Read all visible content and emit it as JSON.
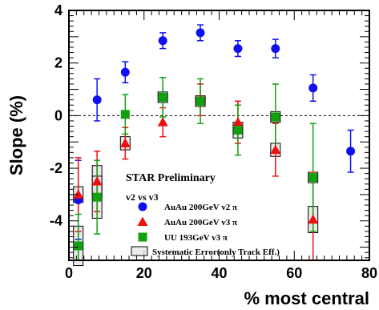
{
  "chart_data": {
    "type": "scatter",
    "xlabel": "% most central",
    "ylabel": "Slope (%)",
    "xlim": [
      0,
      80
    ],
    "ylim": [
      -5.5,
      4
    ],
    "x_ticks": [
      0,
      20,
      40,
      60,
      80
    ],
    "y_ticks": [
      -4,
      -2,
      0,
      2,
      4
    ],
    "reference_line": {
      "y": 0,
      "style": "dashed"
    },
    "annotations": {
      "preliminary": "STAR Preliminary",
      "subtitle": "v2 vs v3"
    },
    "legend_placement": "lower-center",
    "series": [
      {
        "name": "AuAu 200GeV v2 π",
        "marker": "circle",
        "color": "#1010ee",
        "x": [
          2.5,
          7.5,
          15,
          25,
          35,
          45,
          55,
          65,
          75
        ],
        "y": [
          -3.2,
          0.6,
          1.65,
          2.85,
          3.15,
          2.55,
          2.55,
          1.05,
          -1.35
        ],
        "yerr": [
          1.5,
          0.8,
          0.4,
          0.3,
          0.3,
          0.3,
          0.35,
          0.5,
          0.8
        ]
      },
      {
        "name": "AuAu 200GeV v3 π",
        "marker": "triangle",
        "color": "#ee1010",
        "x": [
          2.5,
          7.5,
          15,
          25,
          35,
          45,
          55,
          65
        ],
        "y": [
          -3.0,
          -2.5,
          -1.05,
          -0.25,
          0.6,
          -0.25,
          -1.3,
          -3.95
        ],
        "yerr": [
          1.4,
          1.15,
          0.6,
          0.55,
          0.6,
          0.8,
          1.0,
          1.8
        ],
        "syst": [
          0.3,
          0.6,
          0.25,
          0.0,
          0.15,
          0.0,
          0.25,
          0.5
        ]
      },
      {
        "name": "UU 193GeV v3 π",
        "marker": "square",
        "color": "#10a010",
        "x": [
          2.5,
          7.5,
          15,
          25,
          35,
          45,
          55,
          65
        ],
        "y": [
          -4.95,
          -3.1,
          0.05,
          0.7,
          0.55,
          -0.55,
          -0.05,
          -2.35
        ],
        "yerr": [
          1.2,
          1.4,
          0.75,
          0.75,
          0.85,
          0.95,
          1.25,
          2.05
        ],
        "syst": [
          0.75,
          0.8,
          0.0,
          0.2,
          0.2,
          0.3,
          0.2,
          0.2
        ]
      }
    ],
    "systematic_legend": "Systematic Error(only Track Eff.)"
  }
}
